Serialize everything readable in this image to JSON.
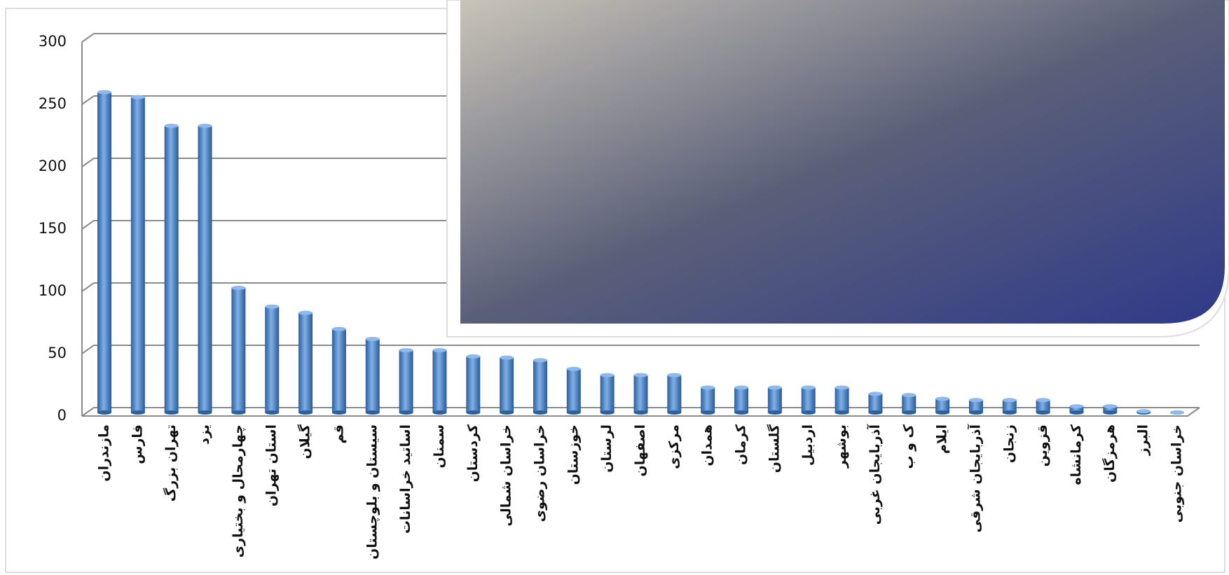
{
  "chart_data": {
    "type": "bar",
    "categories": [
      "مازندران",
      "فارس",
      "تهران بزرگ",
      "یزد",
      "چهارمحال و بختیاری",
      "استان تهران",
      "گیلان",
      "قم",
      "سیستان و بلوچستان",
      "اساتید خراسانات",
      "سمنان",
      "کردستان",
      "خراسان شمالی",
      "خراسان رضوی",
      "خوزستان",
      "لرستان",
      "اصفهان",
      "مرکزی",
      "همدان",
      "کرمان",
      "گلستان",
      "اردبیل",
      "بوشهر",
      "آذربایجان غربی",
      "ک و ب",
      "ایلام",
      "آذربایجان شرقی",
      "زنجان",
      "قزوین",
      "کرمانشاه",
      "هرمزگان",
      "البرز",
      "خراسان جنوبی"
    ],
    "values": [
      257,
      253,
      230,
      230,
      100,
      85,
      80,
      67,
      59,
      50,
      50,
      45,
      44,
      42,
      35,
      30,
      30,
      30,
      20,
      20,
      20,
      20,
      20,
      15,
      14,
      11,
      10,
      10,
      10,
      5,
      5,
      1,
      0
    ],
    "color": "#4a84c8",
    "ylim": [
      0,
      300
    ],
    "yticks": [
      0,
      50,
      100,
      150,
      200,
      250,
      300
    ],
    "grid": true
  }
}
